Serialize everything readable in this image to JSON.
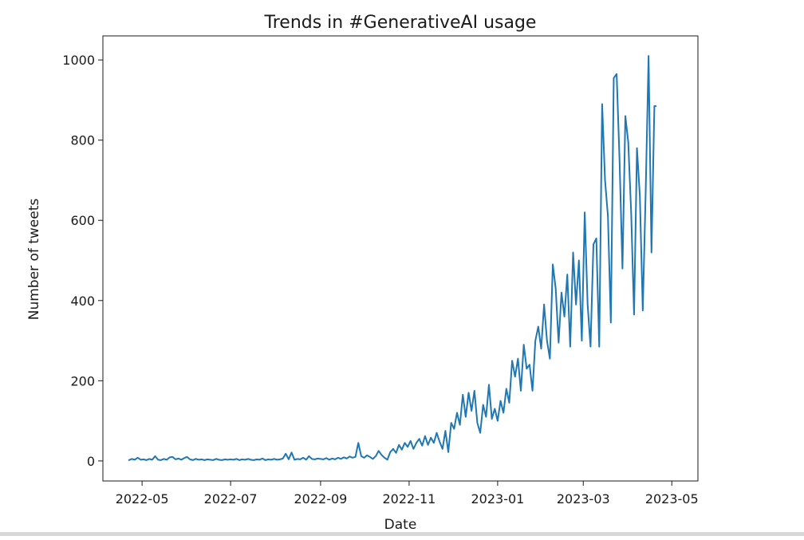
{
  "chart_data": {
    "type": "line",
    "title": "Trends in #GenerativeAI usage",
    "xlabel": "Date",
    "ylabel": "Number of tweets",
    "xlim": [
      "2022-04-04",
      "2023-05-19"
    ],
    "ylim": [
      -50,
      1060
    ],
    "grid": false,
    "legend": "none",
    "x_ticks": [
      "2022-05",
      "2022-07",
      "2022-09",
      "2022-11",
      "2023-01",
      "2023-03",
      "2023-05"
    ],
    "y_ticks": [
      0,
      200,
      400,
      600,
      800,
      1000
    ],
    "line_color": "#1f77b4",
    "series": [
      {
        "points": [
          [
            "2022-04-22",
            2
          ],
          [
            "2022-04-24",
            5
          ],
          [
            "2022-04-26",
            3
          ],
          [
            "2022-04-28",
            8
          ],
          [
            "2022-04-30",
            3
          ],
          [
            "2022-05-02",
            4
          ],
          [
            "2022-05-04",
            2
          ],
          [
            "2022-05-06",
            5
          ],
          [
            "2022-05-08",
            3
          ],
          [
            "2022-05-10",
            12
          ],
          [
            "2022-05-12",
            3
          ],
          [
            "2022-05-14",
            2
          ],
          [
            "2022-05-16",
            5
          ],
          [
            "2022-05-18",
            3
          ],
          [
            "2022-05-20",
            9
          ],
          [
            "2022-05-22",
            10
          ],
          [
            "2022-05-24",
            4
          ],
          [
            "2022-05-26",
            6
          ],
          [
            "2022-05-28",
            3
          ],
          [
            "2022-05-30",
            7
          ],
          [
            "2022-06-01",
            10
          ],
          [
            "2022-06-03",
            4
          ],
          [
            "2022-06-05",
            2
          ],
          [
            "2022-06-07",
            5
          ],
          [
            "2022-06-09",
            3
          ],
          [
            "2022-06-11",
            4
          ],
          [
            "2022-06-13",
            2
          ],
          [
            "2022-06-15",
            4
          ],
          [
            "2022-06-17",
            3
          ],
          [
            "2022-06-19",
            2
          ],
          [
            "2022-06-21",
            5
          ],
          [
            "2022-06-23",
            3
          ],
          [
            "2022-06-25",
            2
          ],
          [
            "2022-06-27",
            4
          ],
          [
            "2022-06-29",
            3
          ],
          [
            "2022-07-01",
            4
          ],
          [
            "2022-07-03",
            3
          ],
          [
            "2022-07-05",
            5
          ],
          [
            "2022-07-07",
            2
          ],
          [
            "2022-07-09",
            4
          ],
          [
            "2022-07-11",
            3
          ],
          [
            "2022-07-13",
            5
          ],
          [
            "2022-07-15",
            3
          ],
          [
            "2022-07-17",
            2
          ],
          [
            "2022-07-19",
            4
          ],
          [
            "2022-07-21",
            3
          ],
          [
            "2022-07-23",
            6
          ],
          [
            "2022-07-25",
            2
          ],
          [
            "2022-07-27",
            4
          ],
          [
            "2022-07-29",
            3
          ],
          [
            "2022-07-31",
            5
          ],
          [
            "2022-08-02",
            3
          ],
          [
            "2022-08-04",
            4
          ],
          [
            "2022-08-06",
            6
          ],
          [
            "2022-08-08",
            18
          ],
          [
            "2022-08-10",
            4
          ],
          [
            "2022-08-12",
            21
          ],
          [
            "2022-08-14",
            3
          ],
          [
            "2022-08-16",
            5
          ],
          [
            "2022-08-18",
            4
          ],
          [
            "2022-08-20",
            8
          ],
          [
            "2022-08-22",
            3
          ],
          [
            "2022-08-24",
            12
          ],
          [
            "2022-08-26",
            5
          ],
          [
            "2022-08-28",
            4
          ],
          [
            "2022-08-30",
            6
          ],
          [
            "2022-09-01",
            5
          ],
          [
            "2022-09-03",
            4
          ],
          [
            "2022-09-05",
            7
          ],
          [
            "2022-09-07",
            3
          ],
          [
            "2022-09-09",
            6
          ],
          [
            "2022-09-11",
            4
          ],
          [
            "2022-09-13",
            8
          ],
          [
            "2022-09-15",
            5
          ],
          [
            "2022-09-17",
            9
          ],
          [
            "2022-09-19",
            6
          ],
          [
            "2022-09-21",
            11
          ],
          [
            "2022-09-23",
            8
          ],
          [
            "2022-09-25",
            10
          ],
          [
            "2022-09-27",
            45
          ],
          [
            "2022-09-29",
            12
          ],
          [
            "2022-10-01",
            8
          ],
          [
            "2022-10-03",
            14
          ],
          [
            "2022-10-05",
            10
          ],
          [
            "2022-10-07",
            5
          ],
          [
            "2022-10-09",
            12
          ],
          [
            "2022-10-11",
            25
          ],
          [
            "2022-10-13",
            15
          ],
          [
            "2022-10-15",
            8
          ],
          [
            "2022-10-17",
            3
          ],
          [
            "2022-10-19",
            22
          ],
          [
            "2022-10-21",
            30
          ],
          [
            "2022-10-23",
            20
          ],
          [
            "2022-10-25",
            40
          ],
          [
            "2022-10-27",
            28
          ],
          [
            "2022-10-29",
            45
          ],
          [
            "2022-10-31",
            35
          ],
          [
            "2022-11-02",
            50
          ],
          [
            "2022-11-04",
            30
          ],
          [
            "2022-11-06",
            45
          ],
          [
            "2022-11-08",
            55
          ],
          [
            "2022-11-10",
            38
          ],
          [
            "2022-11-12",
            62
          ],
          [
            "2022-11-14",
            40
          ],
          [
            "2022-11-16",
            58
          ],
          [
            "2022-11-18",
            45
          ],
          [
            "2022-11-20",
            70
          ],
          [
            "2022-11-22",
            48
          ],
          [
            "2022-11-24",
            30
          ],
          [
            "2022-11-26",
            75
          ],
          [
            "2022-11-28",
            22
          ],
          [
            "2022-11-30",
            95
          ],
          [
            "2022-12-02",
            80
          ],
          [
            "2022-12-04",
            120
          ],
          [
            "2022-12-06",
            90
          ],
          [
            "2022-12-08",
            165
          ],
          [
            "2022-12-10",
            110
          ],
          [
            "2022-12-12",
            170
          ],
          [
            "2022-12-14",
            125
          ],
          [
            "2022-12-16",
            175
          ],
          [
            "2022-12-18",
            95
          ],
          [
            "2022-12-20",
            70
          ],
          [
            "2022-12-22",
            140
          ],
          [
            "2022-12-24",
            110
          ],
          [
            "2022-12-26",
            190
          ],
          [
            "2022-12-28",
            105
          ],
          [
            "2022-12-30",
            130
          ],
          [
            "2023-01-01",
            100
          ],
          [
            "2023-01-03",
            150
          ],
          [
            "2023-01-05",
            120
          ],
          [
            "2023-01-07",
            180
          ],
          [
            "2023-01-09",
            145
          ],
          [
            "2023-01-11",
            250
          ],
          [
            "2023-01-13",
            210
          ],
          [
            "2023-01-15",
            255
          ],
          [
            "2023-01-17",
            175
          ],
          [
            "2023-01-19",
            290
          ],
          [
            "2023-01-21",
            230
          ],
          [
            "2023-01-23",
            240
          ],
          [
            "2023-01-25",
            175
          ],
          [
            "2023-01-27",
            300
          ],
          [
            "2023-01-29",
            335
          ],
          [
            "2023-01-31",
            280
          ],
          [
            "2023-02-02",
            390
          ],
          [
            "2023-02-04",
            300
          ],
          [
            "2023-02-06",
            255
          ],
          [
            "2023-02-08",
            490
          ],
          [
            "2023-02-10",
            430
          ],
          [
            "2023-02-12",
            295
          ],
          [
            "2023-02-14",
            420
          ],
          [
            "2023-02-16",
            360
          ],
          [
            "2023-02-18",
            465
          ],
          [
            "2023-02-20",
            285
          ],
          [
            "2023-02-22",
            520
          ],
          [
            "2023-02-24",
            390
          ],
          [
            "2023-02-26",
            500
          ],
          [
            "2023-02-28",
            300
          ],
          [
            "2023-03-02",
            620
          ],
          [
            "2023-03-04",
            390
          ],
          [
            "2023-03-06",
            285
          ],
          [
            "2023-03-08",
            540
          ],
          [
            "2023-03-10",
            555
          ],
          [
            "2023-03-12",
            285
          ],
          [
            "2023-03-14",
            890
          ],
          [
            "2023-03-16",
            700
          ],
          [
            "2023-03-18",
            610
          ],
          [
            "2023-03-20",
            345
          ],
          [
            "2023-03-22",
            955
          ],
          [
            "2023-03-24",
            965
          ],
          [
            "2023-03-26",
            750
          ],
          [
            "2023-03-28",
            480
          ],
          [
            "2023-03-30",
            860
          ],
          [
            "2023-04-01",
            795
          ],
          [
            "2023-04-03",
            620
          ],
          [
            "2023-04-05",
            365
          ],
          [
            "2023-04-07",
            780
          ],
          [
            "2023-04-09",
            660
          ],
          [
            "2023-04-11",
            375
          ],
          [
            "2023-04-13",
            670
          ],
          [
            "2023-04-15",
            1010
          ],
          [
            "2023-04-17",
            520
          ],
          [
            "2023-04-19",
            885
          ],
          [
            "2023-04-20",
            885
          ]
        ]
      }
    ]
  }
}
